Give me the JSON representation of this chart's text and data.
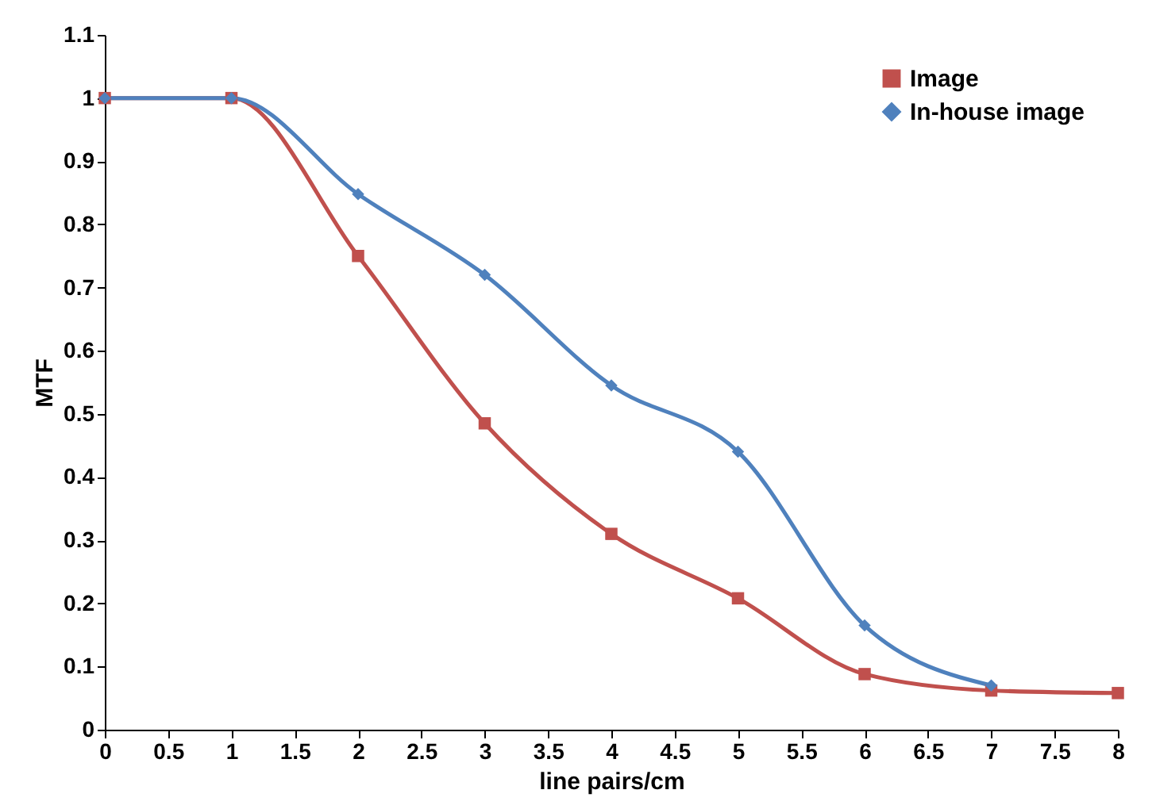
{
  "chart_data": {
    "type": "line",
    "xlabel": "line pairs/cm",
    "ylabel": "MTF",
    "xlim": [
      0,
      8
    ],
    "xticks": [
      0,
      0.5,
      1,
      1.5,
      2,
      2.5,
      3,
      3.5,
      4,
      4.5,
      5,
      5.5,
      6,
      6.5,
      7,
      7.5,
      8
    ],
    "ylim": [
      0,
      1.1
    ],
    "yticks": [
      0,
      0.1,
      0.2,
      0.3,
      0.4,
      0.5,
      0.6,
      0.7,
      0.8,
      0.9,
      1,
      1.1
    ],
    "grid": false,
    "legend": "top right",
    "line_style": "solid",
    "series": [
      {
        "name": "Image",
        "color": "#c0504d",
        "marker": "square",
        "x": [
          0,
          1,
          2,
          3,
          4,
          5,
          6,
          7,
          8
        ],
        "values": [
          1,
          1,
          0.75,
          0.485,
          0.31,
          0.208,
          0.088,
          0.062,
          0.058
        ]
      },
      {
        "name": "In-house image",
        "color": "#4f81bd",
        "marker": "diamond",
        "x": [
          0,
          1,
          2,
          3,
          4,
          5,
          6,
          7
        ],
        "values": [
          1,
          1,
          0.848,
          0.72,
          0.545,
          0.44,
          0.165,
          0.07
        ]
      }
    ]
  }
}
